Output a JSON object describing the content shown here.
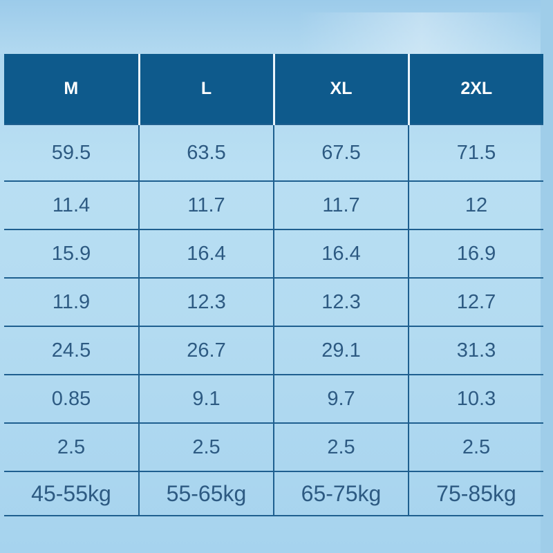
{
  "table": {
    "headers": [
      "M",
      "L",
      "XL",
      "2XL"
    ],
    "rows": [
      [
        "59.5",
        "63.5",
        "67.5",
        "71.5"
      ],
      [
        "11.4",
        "11.7",
        "11.7",
        "12"
      ],
      [
        "15.9",
        "16.4",
        "16.4",
        "16.9"
      ],
      [
        "11.9",
        "12.3",
        "12.3",
        "12.7"
      ],
      [
        "24.5",
        "26.7",
        "29.1",
        "31.3"
      ],
      [
        "0.85",
        "9.1",
        "9.7",
        "10.3"
      ],
      [
        "2.5",
        "2.5",
        "2.5",
        "2.5"
      ],
      [
        "45-55kg",
        "55-65kg",
        "65-75kg",
        "75-85kg"
      ]
    ]
  },
  "colors": {
    "header_background": "#0e5a8c",
    "header_text": "#ffffff",
    "cell_text": "#2d5a82",
    "page_background": "#b3dbf1",
    "grid_lines": "#1e5f8f"
  }
}
